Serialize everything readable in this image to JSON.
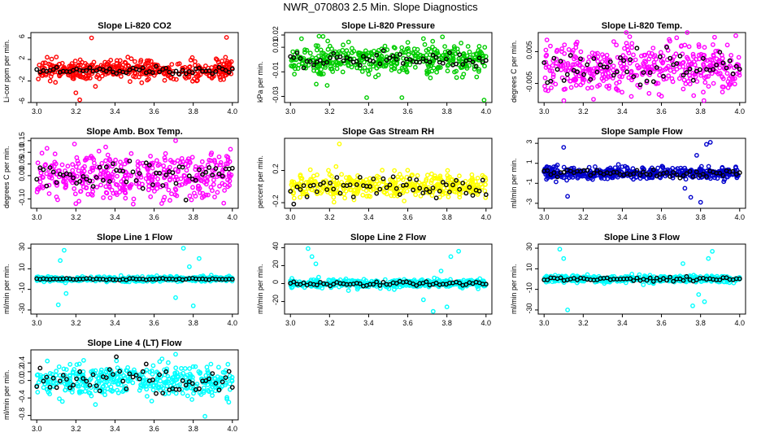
{
  "figure": {
    "title": "NWR_070803  2.5 Min. Slope Diagnostics"
  },
  "chart_data": [
    {
      "type": "scatter",
      "title": "Slope Li-820 CO2",
      "ylabel": "Li-cor ppm per min.",
      "xlim": [
        2.97,
        4.03
      ],
      "ylim": [
        -6,
        7
      ],
      "xticks": [
        "3.0",
        "3.2",
        "3.4",
        "3.6",
        "3.8",
        "4.0"
      ],
      "yticks": [
        "-6",
        "-2",
        "2",
        "6"
      ],
      "color": "#ff0000",
      "spread": 0.9,
      "ref_spread": 0.35,
      "outliers": [
        [
          3.28,
          6.0
        ],
        [
          3.22,
          -5.5
        ],
        [
          3.97,
          6.1
        ],
        [
          3.2,
          -4.2
        ],
        [
          3.3,
          -3.0
        ]
      ],
      "count": 420
    },
    {
      "type": "scatter",
      "title": "Slope Li-820 Pressure",
      "ylabel": "kPa per min.",
      "xlim": [
        2.97,
        4.03
      ],
      "ylim": [
        -0.035,
        0.022
      ],
      "xticks": [
        "3.0",
        "3.2",
        "3.4",
        "3.6",
        "3.8",
        "4.0"
      ],
      "yticks": [
        "-0.03",
        "-0.01",
        "0.01",
        "0.02"
      ],
      "ytickvals": [
        -0.03,
        -0.01,
        0.01,
        0.02
      ],
      "color": "#00cc00",
      "spread": 0.006,
      "ref_spread": 0.003,
      "outliers": [
        [
          3.39,
          -0.031
        ],
        [
          3.57,
          -0.031
        ],
        [
          3.68,
          0.017
        ],
        [
          3.99,
          -0.033
        ],
        [
          3.6,
          0.014
        ]
      ],
      "count": 420
    },
    {
      "type": "scatter",
      "title": "Slope Li-820 Temp.",
      "ylabel": "degrees C per min.",
      "xlim": [
        2.97,
        4.03
      ],
      "ylim": [
        -0.011,
        0.011
      ],
      "xticks": [
        "3.0",
        "3.2",
        "3.4",
        "3.6",
        "3.8",
        "4.0"
      ],
      "yticks": [
        "-0.005",
        "0.005"
      ],
      "ytickvals": [
        -0.005,
        0.005
      ],
      "color": "#ff00ff",
      "spread": 0.0038,
      "ref_spread": 0.003,
      "outliers": [
        [
          3.42,
          0.011
        ],
        [
          3.6,
          -0.009
        ],
        [
          3.98,
          0.01
        ]
      ],
      "count": 420
    },
    {
      "type": "scatter",
      "title": "Slope Amb. Box Temp.",
      "ylabel": "degrees C per min.",
      "xlim": [
        2.97,
        4.03
      ],
      "ylim": [
        -0.14,
        0.16
      ],
      "xticks": [
        "3.0",
        "3.2",
        "3.4",
        "3.6",
        "3.8",
        "4.0"
      ],
      "yticks": [
        "-0.10",
        "0.00",
        "0.05",
        "0.10",
        "0.15"
      ],
      "ytickvals": [
        -0.1,
        0.0,
        0.05,
        0.1,
        0.15
      ],
      "color": "#ff00ff",
      "spread": 0.05,
      "ref_spread": 0.035,
      "outliers": [
        [
          3.71,
          0.15
        ],
        [
          3.2,
          -0.12
        ]
      ],
      "count": 420
    },
    {
      "type": "scatter",
      "title": "Slope Gas Stream RH",
      "ylabel": "percent per min.",
      "xlim": [
        2.97,
        4.03
      ],
      "ylim": [
        -0.27,
        0.6
      ],
      "xticks": [
        "3.0",
        "3.2",
        "3.4",
        "3.6",
        "3.8",
        "4.0"
      ],
      "yticks": [
        "-0.2",
        "0.2"
      ],
      "ytickvals": [
        -0.2,
        0.2
      ],
      "color": "#ffff00",
      "spread": 0.07,
      "ref_spread": 0.06,
      "outliers": [
        [
          3.25,
          0.53
        ],
        [
          3.21,
          0.13
        ],
        [
          3.99,
          0.12
        ]
      ],
      "count": 420
    },
    {
      "type": "scatter",
      "title": "Slope Sample Flow",
      "ylabel": "ml/min per min.",
      "xlim": [
        2.97,
        4.03
      ],
      "ylim": [
        -3.5,
        3.5
      ],
      "xticks": [
        "3.0",
        "3.2",
        "3.4",
        "3.6",
        "3.8",
        "4.0"
      ],
      "yticks": [
        "-3",
        "-1",
        "1",
        "3"
      ],
      "ytickvals": [
        -3,
        -1,
        1,
        3
      ],
      "color": "#0000cc",
      "spread": 0.3,
      "ref_spread": 0.2,
      "outliers": [
        [
          3.1,
          2.6
        ],
        [
          3.12,
          -2.3
        ],
        [
          3.75,
          -2.4
        ],
        [
          3.8,
          -2.9
        ],
        [
          3.83,
          2.9
        ],
        [
          3.85,
          3.1
        ],
        [
          3.78,
          1.8
        ],
        [
          3.72,
          -1.5
        ]
      ],
      "count": 420
    },
    {
      "type": "scatter",
      "title": "Slope Line 1 Flow",
      "ylabel": "ml/min per min.",
      "xlim": [
        2.97,
        4.03
      ],
      "ylim": [
        -34,
        34
      ],
      "xticks": [
        "3.0",
        "3.2",
        "3.4",
        "3.6",
        "3.8",
        "4.0"
      ],
      "yticks": [
        "-30",
        "-10",
        "10",
        "30"
      ],
      "ytickvals": [
        -30,
        -10,
        10,
        30
      ],
      "color": "#00ffff",
      "spread": 1.2,
      "ref_spread": 0.4,
      "outliers": [
        [
          3.14,
          28
        ],
        [
          3.11,
          -25
        ],
        [
          3.12,
          18
        ],
        [
          3.75,
          30
        ],
        [
          3.8,
          -26
        ],
        [
          3.83,
          20
        ],
        [
          3.71,
          -18
        ],
        [
          3.78,
          12
        ],
        [
          3.15,
          -14
        ]
      ],
      "count": 420
    },
    {
      "type": "scatter",
      "title": "Slope Line 2 Flow",
      "ylabel": "ml/min per min.",
      "xlim": [
        2.97,
        4.03
      ],
      "ylim": [
        -34,
        44
      ],
      "xticks": [
        "3.0",
        "3.2",
        "3.4",
        "3.6",
        "3.8",
        "4.0"
      ],
      "yticks": [
        "-20",
        "0",
        "20",
        "40"
      ],
      "ytickvals": [
        -20,
        0,
        20,
        40
      ],
      "color": "#00ffff",
      "spread": 2.2,
      "ref_spread": 1.2,
      "outliers": [
        [
          3.09,
          39
        ],
        [
          3.11,
          30
        ],
        [
          3.13,
          22
        ],
        [
          3.73,
          -31
        ],
        [
          3.8,
          -26
        ],
        [
          3.82,
          30
        ],
        [
          3.86,
          36
        ],
        [
          3.68,
          -18
        ],
        [
          3.77,
          14
        ]
      ],
      "count": 420
    },
    {
      "type": "scatter",
      "title": "Slope Line 3 Flow",
      "ylabel": "ml/min per min.",
      "xlim": [
        2.97,
        4.03
      ],
      "ylim": [
        -34,
        34
      ],
      "xticks": [
        "3.0",
        "3.2",
        "3.4",
        "3.6",
        "3.8",
        "4.0"
      ],
      "yticks": [
        "-30",
        "-10",
        "10",
        "30"
      ],
      "ytickvals": [
        -30,
        -10,
        10,
        30
      ],
      "color": "#00ffff",
      "spread": 1.6,
      "ref_spread": 1.0,
      "outliers": [
        [
          3.08,
          29
        ],
        [
          3.12,
          -30
        ],
        [
          3.1,
          20
        ],
        [
          3.76,
          -26
        ],
        [
          3.82,
          -22
        ],
        [
          3.84,
          20
        ],
        [
          3.86,
          27
        ],
        [
          3.71,
          15
        ],
        [
          3.79,
          -15
        ]
      ],
      "count": 420
    },
    {
      "type": "scatter",
      "title": "Slope Line 4 (LT) Flow",
      "ylabel": "ml/min per min.",
      "xlim": [
        2.97,
        4.03
      ],
      "ylim": [
        -0.9,
        0.7
      ],
      "xticks": [
        "3.0",
        "3.2",
        "3.4",
        "3.6",
        "3.8",
        "4.0"
      ],
      "yticks": [
        "-0.8",
        "-0.4",
        "0.0",
        "0.2",
        "0.4"
      ],
      "ytickvals": [
        -0.8,
        -0.4,
        0.0,
        0.2,
        0.4
      ],
      "color": "#00ffff",
      "spread": 0.18,
      "ref_spread": 0.15,
      "outliers": [
        [
          3.71,
          0.6
        ],
        [
          3.86,
          -0.82
        ],
        [
          3.3,
          -0.55
        ]
      ],
      "count": 420
    }
  ]
}
